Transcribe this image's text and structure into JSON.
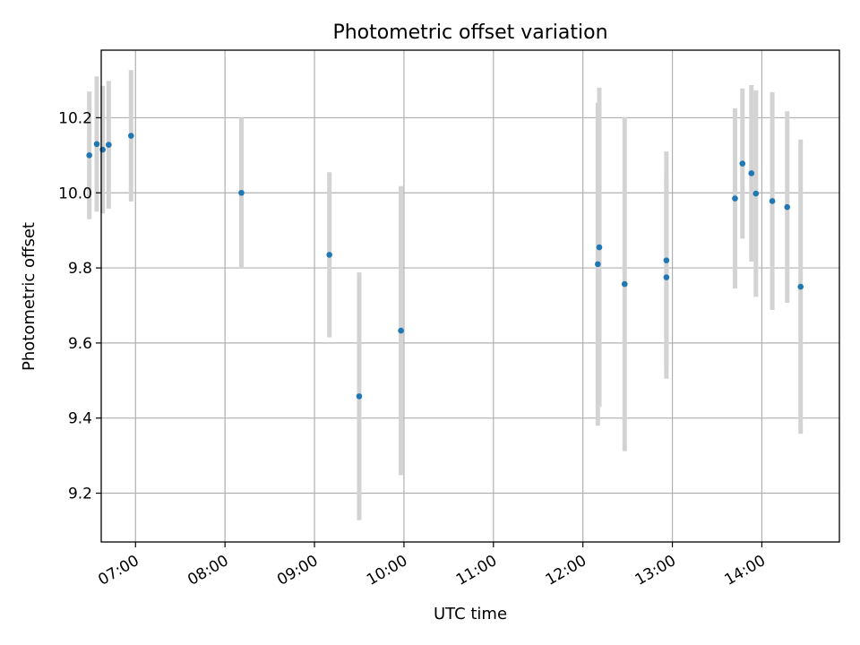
{
  "chart_data": {
    "type": "scatter",
    "title": "Photometric offset variation",
    "xlabel": "UTC time",
    "ylabel": "Photometric offset",
    "xlim": [
      "06:37",
      "14:52"
    ],
    "ylim": [
      9.07,
      10.38
    ],
    "x_ticks": [
      "07:00",
      "08:00",
      "09:00",
      "10:00",
      "11:00",
      "12:00",
      "13:00",
      "14:00"
    ],
    "y_ticks": [
      9.2,
      9.4,
      9.6,
      9.8,
      10.0,
      10.2
    ],
    "y_tick_labels": [
      "9.2",
      "9.4",
      "9.6",
      "9.8",
      "10.0",
      "10.2"
    ],
    "grid": true,
    "x_tick_rotation": "30°",
    "marker_color": "#1f77b4",
    "errorbar_color": "#d3d3d3",
    "points": [
      {
        "time": "06:29",
        "y": 10.1,
        "err": 0.17
      },
      {
        "time": "06:34",
        "y": 10.13,
        "err": 0.18
      },
      {
        "time": "06:38",
        "y": 10.115,
        "err": 0.17
      },
      {
        "time": "06:42",
        "y": 10.128,
        "err": 0.17
      },
      {
        "time": "06:57",
        "y": 10.152,
        "err": 0.175
      },
      {
        "time": "08:11",
        "y": 10.0,
        "err": 0.2
      },
      {
        "time": "09:10",
        "y": 9.835,
        "err": 0.22
      },
      {
        "time": "09:30",
        "y": 9.458,
        "err": 0.33
      },
      {
        "time": "09:58",
        "y": 9.633,
        "err": 0.385
      },
      {
        "time": "12:10",
        "y": 9.81,
        "err": 0.43
      },
      {
        "time": "12:11",
        "y": 9.855,
        "err": 0.425
      },
      {
        "time": "12:28",
        "y": 9.757,
        "err": 0.445
      },
      {
        "time": "12:56",
        "y": 9.82,
        "err": 0.29
      },
      {
        "time": "12:56",
        "y": 9.775,
        "err": 0.27
      },
      {
        "time": "13:42",
        "y": 9.985,
        "err": 0.24
      },
      {
        "time": "13:47",
        "y": 10.078,
        "err": 0.2
      },
      {
        "time": "13:53",
        "y": 10.052,
        "err": 0.235
      },
      {
        "time": "13:56",
        "y": 9.998,
        "err": 0.275
      },
      {
        "time": "14:07",
        "y": 9.978,
        "err": 0.29
      },
      {
        "time": "14:17",
        "y": 9.962,
        "err": 0.255
      },
      {
        "time": "14:26",
        "y": 9.75,
        "err": 0.392
      }
    ]
  }
}
